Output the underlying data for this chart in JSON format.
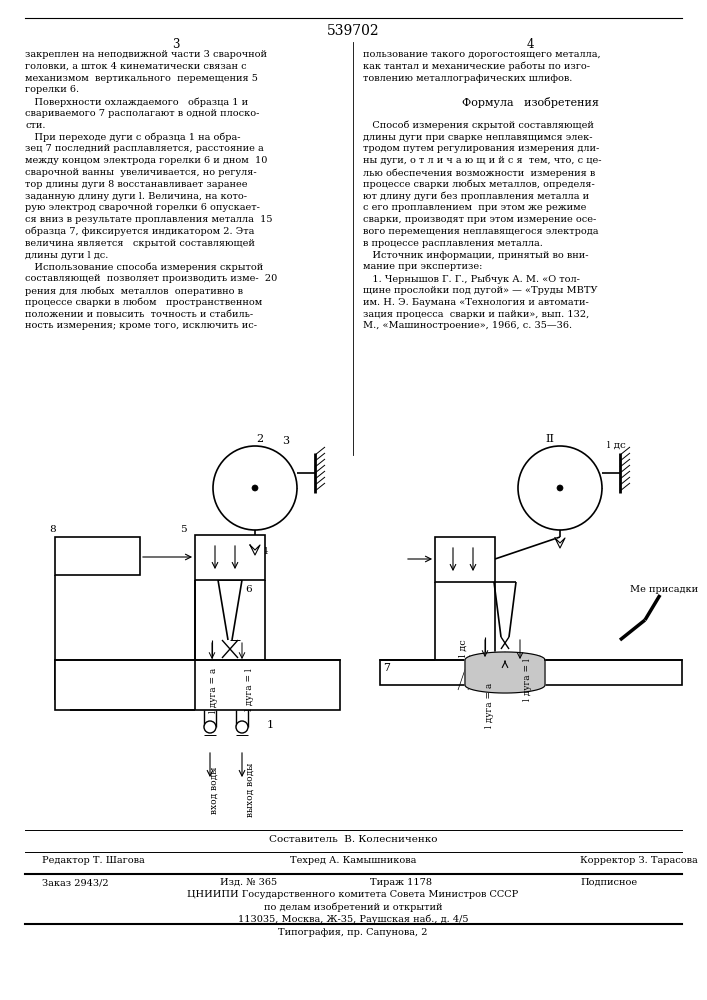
{
  "patent_number": "539702",
  "page_left": "3",
  "page_right": "4",
  "bg": "#ffffff",
  "col_left": [
    "закреплен на неподвижной части 3 сварочной",
    "головки, а шток 4 кинематически связан с",
    "механизмом  вертикального  перемещения 5",
    "горелки 6.",
    "   Поверхности охлаждаемого   образца 1 и",
    "свариваемого 7 располагают в одной плоско-",
    "сти.",
    "   При переходе дуги с образца 1 на обра-",
    "зец 7 последний расплавляется, расстояние а",
    "между концом электрода горелки 6 и дном  10",
    "сварочной ванны  увеличивается, но регуля-",
    "тор длины дуги 8 восстанавливает заранее",
    "заданную длину дуги l. Величина, на кото-",
    "рую электрод сварочной горелки 6 опускает-",
    "ся вниз в результате проплавления металла  15",
    "образца 7, фиксируется индикатором 2. Эта",
    "величина является   скрытой составляющей",
    "длины дуги l дс.",
    "   Использование способа измерения скрытой",
    "составляющей  позволяет производить изме-  20",
    "рения для любых  металлов  оперативно в",
    "процессе сварки в любом   пространственном",
    "положении и повысить  точность и стабиль-",
    "ность измерения; кроме того, исключить ис-"
  ],
  "col_right": [
    "пользование такого дорогостоящего металла,",
    "как тантал и механические работы по изго-",
    "товлению металлографических шлифов.",
    "",
    "Формула   изобретения",
    "",
    "   Способ измерения скрытой составляющей",
    "длины дуги при сварке неплавящимся элек-",
    "тродом путем регулирования измерения дли-",
    "ны дуги, о т л и ч а ю щ и й с я  тем, что, с це-",
    "лью обеспечения возможности  измерения в",
    "процессе сварки любых металлов, определя-",
    "ют длину дуги без проплавления металла и",
    "с его проплавлением  при этом же режиме",
    "сварки, производят при этом измерение осе-",
    "вого перемещения неплавящегося электрода",
    "в процессе расплавления металла.",
    "   Источник информации, принятый во вни-",
    "мание при экспертизе:",
    "   1. Чернышов Г. Г., Рыбчук А. М. «О тол-",
    "щине прослойки под дугой» — «Труды МВТУ",
    "им. Н. Э. Баумана «Технология и автомати-",
    "зация процесса  сварки и пайки», вып. 132,",
    "М., «Машиностроение», 1966, с. 35—36."
  ],
  "footer_composer": "Составитель  В. Колесниченко",
  "footer_editor": "Редактор Т. Шагова",
  "footer_techred": "Техред А. Камышникова",
  "footer_corrector": "Корректор З. Тарасова",
  "footer_order": "Заказ 2943/2",
  "footer_issue": "Изд. № 365",
  "footer_tirazh": "Тираж 1178",
  "footer_podpisnoe": "Подписное",
  "footer_org": "ЦНИИПИ Государственного комитета Совета Министров СССР",
  "footer_org2": "по делам изобретений и открытий",
  "footer_address": "113035, Москва, Ж-35, Раушская наб., д. 4/5",
  "footer_typography": "Типография, пр. Сапунова, 2"
}
